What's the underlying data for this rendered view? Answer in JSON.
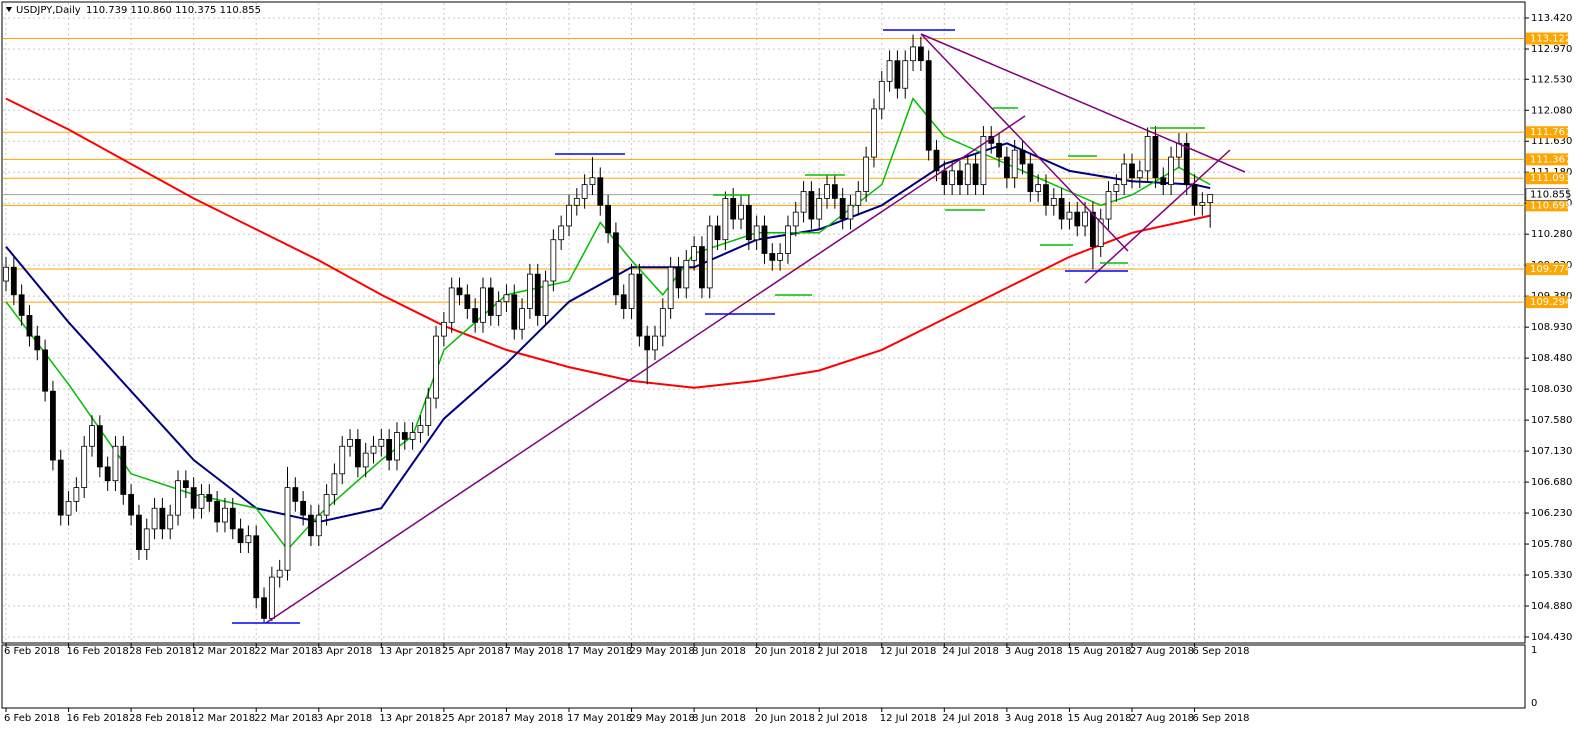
{
  "chart_data": {
    "type": "candlestick",
    "title": "USDJPY,Daily",
    "subtitle": "110.739 110.860 110.375 110.855",
    "grid": true,
    "up_color": "#ffffff",
    "down_color": "#000000",
    "level_color": "#ffa500",
    "ylim": [
      104.43,
      113.42
    ],
    "yticks": [
      {
        "value": 113.42,
        "label": "113.420"
      },
      {
        "value": 112.97,
        "label": "112.970"
      },
      {
        "value": 112.53,
        "label": "112.530"
      },
      {
        "value": 112.08,
        "label": "112.080"
      },
      {
        "value": 111.63,
        "label": "111.630"
      },
      {
        "value": 111.18,
        "label": "111.180"
      },
      {
        "value": 110.73,
        "label": "110.730"
      },
      {
        "value": 110.28,
        "label": "110.280"
      },
      {
        "value": 109.83,
        "label": "109.830"
      },
      {
        "value": 109.38,
        "label": "109.380"
      },
      {
        "value": 108.93,
        "label": "108.930"
      },
      {
        "value": 108.48,
        "label": "108.480"
      },
      {
        "value": 108.03,
        "label": "108.030"
      },
      {
        "value": 107.58,
        "label": "107.580"
      },
      {
        "value": 107.13,
        "label": "107.130"
      },
      {
        "value": 106.68,
        "label": "106.680"
      },
      {
        "value": 106.23,
        "label": "106.230"
      },
      {
        "value": 105.78,
        "label": "105.780"
      },
      {
        "value": 105.33,
        "label": "105.330"
      },
      {
        "value": 104.88,
        "label": "104.880"
      },
      {
        "value": 104.43,
        "label": "104.430"
      }
    ],
    "levels": [
      {
        "value": 113.122,
        "label": "113.122"
      },
      {
        "value": 111.761,
        "label": "111.761"
      },
      {
        "value": 111.367,
        "label": "111.367"
      },
      {
        "value": 111.093,
        "label": "111.093"
      },
      {
        "value": 110.699,
        "label": "110.699"
      },
      {
        "value": 109.774,
        "label": "109.774"
      },
      {
        "value": 109.294,
        "label": "109.294"
      }
    ],
    "last_price": {
      "value": 110.855,
      "label": "110.855"
    },
    "indicator_yticks": [
      1,
      0
    ],
    "categories": [
      "6 Feb 2018",
      null,
      null,
      null,
      null,
      null,
      null,
      null,
      "16 Feb 2018",
      null,
      null,
      null,
      null,
      null,
      null,
      null,
      "28 Feb 2018",
      null,
      null,
      null,
      null,
      null,
      null,
      null,
      "12 Mar 2018",
      null,
      null,
      null,
      null,
      null,
      null,
      null,
      "22 Mar 2018",
      null,
      null,
      null,
      null,
      null,
      null,
      null,
      "3 Apr 2018",
      null,
      null,
      null,
      null,
      null,
      null,
      null,
      "13 Apr 2018",
      null,
      null,
      null,
      null,
      null,
      null,
      null,
      "25 Apr 2018",
      null,
      null,
      null,
      null,
      null,
      null,
      null,
      "7 May 2018",
      null,
      null,
      null,
      null,
      null,
      null,
      null,
      "17 May 2018",
      null,
      null,
      null,
      null,
      null,
      null,
      null,
      "29 May 2018",
      null,
      null,
      null,
      null,
      null,
      null,
      null,
      "8 Jun 2018",
      null,
      null,
      null,
      null,
      null,
      null,
      null,
      "20 Jun 2018",
      null,
      null,
      null,
      null,
      null,
      null,
      null,
      "2 Jul 2018",
      null,
      null,
      null,
      null,
      null,
      null,
      null,
      "12 Jul 2018",
      null,
      null,
      null,
      null,
      null,
      null,
      null,
      "24 Jul 2018",
      null,
      null,
      null,
      null,
      null,
      null,
      null,
      "3 Aug 2018",
      null,
      null,
      null,
      null,
      null,
      null,
      null,
      "15 Aug 2018",
      null,
      null,
      null,
      null,
      null,
      null,
      null,
      "27 Aug 2018",
      null,
      null,
      null,
      null,
      null,
      null,
      null,
      "6 Sep 2018",
      null,
      null
    ],
    "ohlc": [
      [
        109.6,
        109.95,
        109.45,
        109.8
      ],
      [
        109.8,
        109.95,
        109.25,
        109.4
      ],
      [
        109.4,
        109.55,
        108.95,
        109.1
      ],
      [
        109.1,
        109.25,
        108.65,
        108.8
      ],
      [
        108.8,
        108.95,
        108.45,
        108.6
      ],
      [
        108.6,
        108.75,
        107.85,
        108.0
      ],
      [
        108.0,
        108.15,
        106.85,
        107.0
      ],
      [
        107.0,
        107.15,
        106.05,
        106.2
      ],
      [
        106.2,
        106.55,
        106.05,
        106.4
      ],
      [
        106.4,
        106.75,
        106.25,
        106.6
      ],
      [
        106.6,
        107.35,
        106.45,
        107.2
      ],
      [
        107.2,
        107.65,
        107.05,
        107.5
      ],
      [
        107.5,
        107.65,
        106.75,
        106.9
      ],
      [
        106.9,
        107.05,
        106.55,
        106.7
      ],
      [
        106.7,
        107.35,
        106.55,
        107.2
      ],
      [
        107.2,
        107.35,
        106.35,
        106.5
      ],
      [
        106.5,
        106.65,
        106.05,
        106.2
      ],
      [
        106.2,
        106.35,
        105.55,
        105.7
      ],
      [
        105.7,
        106.15,
        105.55,
        106.0
      ],
      [
        106.0,
        106.45,
        105.85,
        106.3
      ],
      [
        106.3,
        106.45,
        105.85,
        106.0
      ],
      [
        106.0,
        106.35,
        105.85,
        106.2
      ],
      [
        106.2,
        106.85,
        106.05,
        106.7
      ],
      [
        106.7,
        106.85,
        106.45,
        106.6
      ],
      [
        106.6,
        106.75,
        106.15,
        106.3
      ],
      [
        106.3,
        106.65,
        106.15,
        106.5
      ],
      [
        106.5,
        106.65,
        106.25,
        106.4
      ],
      [
        106.4,
        106.55,
        105.95,
        106.1
      ],
      [
        106.1,
        106.45,
        105.95,
        106.3
      ],
      [
        106.3,
        106.45,
        105.85,
        106.0
      ],
      [
        106.0,
        106.15,
        105.65,
        105.8
      ],
      [
        105.8,
        106.05,
        105.65,
        105.9
      ],
      [
        105.9,
        106.05,
        104.85,
        105.0
      ],
      [
        105.0,
        105.15,
        104.63,
        104.7
      ],
      [
        104.7,
        105.45,
        104.66,
        105.3
      ],
      [
        105.3,
        105.55,
        105.15,
        105.4
      ],
      [
        105.4,
        106.9,
        105.25,
        106.6
      ],
      [
        106.6,
        106.75,
        106.25,
        106.4
      ],
      [
        106.4,
        106.55,
        106.05,
        106.2
      ],
      [
        106.2,
        106.35,
        105.75,
        105.9
      ],
      [
        105.9,
        106.35,
        105.75,
        106.2
      ],
      [
        106.2,
        106.65,
        106.05,
        106.5
      ],
      [
        106.5,
        106.95,
        106.35,
        106.8
      ],
      [
        106.8,
        107.35,
        106.65,
        107.2
      ],
      [
        107.2,
        107.45,
        107.05,
        107.3
      ],
      [
        107.3,
        107.45,
        106.75,
        106.9
      ],
      [
        106.9,
        107.25,
        106.75,
        107.1
      ],
      [
        107.1,
        107.35,
        106.95,
        107.2
      ],
      [
        107.2,
        107.45,
        107.05,
        107.3
      ],
      [
        107.3,
        107.45,
        106.85,
        107.0
      ],
      [
        107.0,
        107.55,
        106.85,
        107.4
      ],
      [
        107.4,
        107.55,
        107.15,
        107.3
      ],
      [
        107.3,
        107.55,
        107.15,
        107.4
      ],
      [
        107.4,
        107.65,
        107.25,
        107.5
      ],
      [
        107.5,
        108.05,
        107.35,
        107.9
      ],
      [
        107.9,
        108.95,
        107.75,
        108.8
      ],
      [
        108.8,
        109.15,
        108.65,
        109.0
      ],
      [
        109.0,
        109.65,
        108.85,
        109.5
      ],
      [
        109.5,
        109.65,
        109.25,
        109.4
      ],
      [
        109.4,
        109.55,
        109.05,
        109.2
      ],
      [
        109.2,
        109.35,
        108.85,
        109.0
      ],
      [
        109.0,
        109.65,
        108.85,
        109.5
      ],
      [
        109.5,
        109.65,
        108.95,
        109.1
      ],
      [
        109.1,
        109.45,
        108.95,
        109.3
      ],
      [
        109.3,
        109.55,
        109.15,
        109.4
      ],
      [
        109.4,
        109.55,
        108.75,
        108.9
      ],
      [
        108.9,
        109.35,
        108.75,
        109.2
      ],
      [
        109.2,
        109.85,
        109.05,
        109.7
      ],
      [
        109.7,
        109.85,
        108.95,
        109.1
      ],
      [
        109.1,
        109.75,
        108.95,
        109.6
      ],
      [
        109.6,
        110.35,
        109.45,
        110.2
      ],
      [
        110.2,
        110.55,
        110.05,
        110.4
      ],
      [
        110.4,
        110.85,
        110.25,
        110.7
      ],
      [
        110.7,
        110.95,
        110.55,
        110.8
      ],
      [
        110.8,
        111.15,
        110.65,
        111.0
      ],
      [
        111.0,
        111.4,
        110.85,
        111.1
      ],
      [
        111.1,
        111.25,
        110.55,
        110.7
      ],
      [
        110.7,
        110.85,
        110.15,
        110.3
      ],
      [
        110.3,
        110.45,
        109.25,
        109.4
      ],
      [
        109.4,
        109.55,
        109.05,
        109.2
      ],
      [
        109.2,
        109.85,
        109.05,
        109.7
      ],
      [
        109.7,
        109.85,
        108.65,
        108.8
      ],
      [
        108.8,
        108.95,
        108.1,
        108.6
      ],
      [
        108.6,
        108.95,
        108.45,
        108.8
      ],
      [
        108.8,
        109.35,
        108.65,
        109.2
      ],
      [
        109.2,
        109.95,
        109.05,
        109.8
      ],
      [
        109.8,
        109.95,
        109.35,
        109.5
      ],
      [
        109.5,
        110.05,
        109.35,
        109.9
      ],
      [
        109.9,
        110.25,
        109.75,
        110.1
      ],
      [
        110.1,
        110.25,
        109.35,
        109.5
      ],
      [
        109.5,
        110.55,
        109.35,
        110.4
      ],
      [
        110.4,
        110.55,
        110.05,
        110.2
      ],
      [
        110.2,
        110.9,
        110.05,
        110.8
      ],
      [
        110.8,
        110.95,
        110.35,
        110.5
      ],
      [
        110.5,
        110.85,
        110.35,
        110.7
      ],
      [
        110.7,
        110.85,
        110.05,
        110.2
      ],
      [
        110.2,
        110.55,
        110.05,
        110.4
      ],
      [
        110.4,
        110.55,
        109.85,
        110.0
      ],
      [
        110.0,
        110.15,
        109.75,
        109.9
      ],
      [
        109.9,
        110.15,
        109.75,
        110.0
      ],
      [
        110.0,
        110.55,
        109.85,
        110.4
      ],
      [
        110.4,
        110.75,
        110.25,
        110.6
      ],
      [
        110.6,
        111.05,
        110.45,
        110.9
      ],
      [
        110.9,
        111.05,
        110.35,
        110.5
      ],
      [
        110.5,
        110.95,
        110.35,
        110.8
      ],
      [
        110.8,
        111.15,
        110.65,
        111.0
      ],
      [
        111.0,
        111.15,
        110.65,
        110.8
      ],
      [
        110.8,
        110.95,
        110.35,
        110.5
      ],
      [
        110.5,
        110.85,
        110.35,
        110.7
      ],
      [
        110.7,
        111.05,
        110.55,
        110.9
      ],
      [
        110.9,
        111.55,
        110.75,
        111.4
      ],
      [
        111.4,
        112.25,
        111.25,
        112.1
      ],
      [
        112.1,
        112.65,
        111.95,
        112.5
      ],
      [
        112.5,
        112.95,
        112.35,
        112.8
      ],
      [
        112.8,
        112.95,
        112.25,
        112.4
      ],
      [
        112.4,
        112.95,
        112.25,
        112.8
      ],
      [
        112.8,
        113.18,
        112.65,
        113.0
      ],
      [
        113.0,
        113.15,
        112.65,
        112.8
      ],
      [
        112.8,
        112.95,
        111.35,
        111.5
      ],
      [
        111.5,
        111.65,
        111.05,
        111.2
      ],
      [
        111.2,
        111.35,
        110.85,
        111.0
      ],
      [
        111.0,
        111.35,
        110.85,
        111.2
      ],
      [
        111.2,
        111.35,
        110.85,
        111.0
      ],
      [
        111.0,
        111.45,
        110.85,
        111.3
      ],
      [
        111.3,
        111.45,
        110.85,
        111.0
      ],
      [
        111.0,
        111.85,
        110.85,
        111.7
      ],
      [
        111.7,
        111.85,
        111.45,
        111.6
      ],
      [
        111.6,
        111.75,
        111.25,
        111.4
      ],
      [
        111.4,
        111.55,
        110.95,
        111.1
      ],
      [
        111.1,
        111.65,
        110.95,
        111.5
      ],
      [
        111.5,
        111.65,
        111.15,
        111.3
      ],
      [
        111.3,
        111.45,
        110.75,
        110.9
      ],
      [
        110.9,
        111.15,
        110.75,
        111.0
      ],
      [
        111.0,
        111.15,
        110.55,
        110.7
      ],
      [
        110.7,
        110.95,
        110.55,
        110.8
      ],
      [
        110.8,
        110.95,
        110.35,
        110.5
      ],
      [
        110.5,
        110.75,
        110.35,
        110.6
      ],
      [
        110.6,
        110.75,
        110.25,
        110.4
      ],
      [
        110.4,
        110.75,
        110.25,
        110.6
      ],
      [
        110.6,
        110.75,
        109.77,
        110.1
      ],
      [
        110.1,
        110.65,
        109.95,
        110.5
      ],
      [
        110.5,
        111.05,
        110.35,
        110.9
      ],
      [
        110.9,
        111.15,
        110.75,
        111.0
      ],
      [
        111.0,
        111.45,
        110.85,
        111.3
      ],
      [
        111.3,
        111.45,
        110.95,
        111.1
      ],
      [
        111.1,
        111.35,
        110.95,
        111.2
      ],
      [
        111.2,
        111.83,
        111.05,
        111.7
      ],
      [
        111.7,
        111.85,
        110.95,
        111.1
      ],
      [
        111.1,
        111.25,
        110.85,
        111.0
      ],
      [
        111.0,
        111.55,
        110.85,
        111.4
      ],
      [
        111.4,
        111.75,
        111.25,
        111.6
      ],
      [
        111.6,
        111.75,
        110.85,
        111.0
      ],
      [
        111.0,
        111.15,
        110.55,
        110.7
      ],
      [
        110.7,
        110.89,
        110.55,
        110.739
      ],
      [
        110.739,
        110.86,
        110.375,
        110.855
      ]
    ],
    "series": [
      {
        "color": "#ff0000",
        "x": [
          0,
          8,
          16,
          24,
          32,
          40,
          48,
          56,
          64,
          72,
          80,
          88,
          96,
          104,
          112,
          120,
          128,
          136,
          144,
          152,
          154
        ],
        "values": [
          112.25,
          111.8,
          111.3,
          110.8,
          110.35,
          109.9,
          109.4,
          108.95,
          108.6,
          108.35,
          108.15,
          108.05,
          108.15,
          108.3,
          108.6,
          109.05,
          109.5,
          109.95,
          110.3,
          110.5,
          110.55
        ]
      },
      {
        "color": "#000080",
        "x": [
          0,
          8,
          16,
          24,
          32,
          40,
          48,
          56,
          64,
          72,
          80,
          88,
          96,
          104,
          112,
          120,
          128,
          136,
          144,
          152,
          154
        ],
        "values": [
          110.1,
          109.0,
          108.0,
          107.0,
          106.3,
          106.1,
          106.3,
          107.6,
          108.4,
          109.3,
          109.8,
          109.8,
          110.2,
          110.35,
          110.7,
          111.3,
          111.6,
          111.2,
          111.05,
          111.0,
          110.95
        ]
      },
      {
        "color": "#00c000",
        "x": [
          0,
          8,
          16,
          24,
          32,
          36,
          40,
          48,
          52,
          56,
          64,
          72,
          76,
          80,
          84,
          88,
          96,
          104,
          112,
          116,
          120,
          128,
          136,
          140,
          144,
          150,
          154
        ],
        "values": [
          109.3,
          108.1,
          106.8,
          106.5,
          106.3,
          105.7,
          106.2,
          107.0,
          107.35,
          108.6,
          109.4,
          109.6,
          110.45,
          109.9,
          109.4,
          110.0,
          110.3,
          110.3,
          111.0,
          112.25,
          111.7,
          111.3,
          110.9,
          110.7,
          110.85,
          111.25,
          111.0
        ]
      }
    ]
  }
}
